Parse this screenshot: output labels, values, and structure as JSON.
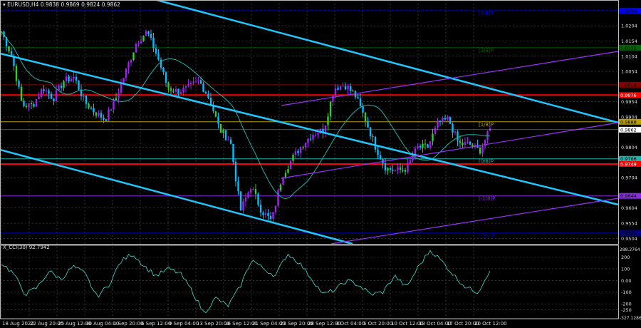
{
  "header": {
    "symbol_label": "EURUSD,H4",
    "ohlc": "0.9838 0.9869 0.9824 0.9862"
  },
  "indicator": {
    "label": "X_CCI(30) 92.7942"
  },
  "colors": {
    "background": "#000000",
    "bull_bar": "#a020f0",
    "bear_bar": "#00bfff",
    "highlight_bar": "#32cd32",
    "trend_channel": "#1ec8ff",
    "regression_channel": "#9b30ff",
    "moving_average": "#20b2aa",
    "support_resistance": "#ff0000",
    "cci_line": "#40e0d0",
    "grid": "#555555"
  },
  "chart_data": {
    "type": "candlestick",
    "price_axis": {
      "range": [
        0.9486,
        1.0289
      ],
      "ticks": [
        "1.0204",
        "1.0154",
        "1.0104",
        "1.0054",
        "0.9954",
        "0.9904",
        "0.9804",
        "0.9704",
        "0.9604",
        "0.9554",
        "0.9504"
      ]
    },
    "time_axis": {
      "ticks": [
        "18 Aug 2022",
        "22 Aug 20:00",
        "25 Aug 12:00",
        "30 Aug 04:00",
        "1 Sep 20:00",
        "6 Sep 12:00",
        "9 Sep 04:00",
        "13 Sep 20:00",
        "16 Sep 12:00",
        "21 Sep 04:00",
        "23 Sep 20:00",
        "28 Sep 12:00",
        "3 Oct 04:00",
        "5 Oct 20:00",
        "10 Oct 12:00",
        "13 Oct 04:00",
        "17 Oct 20:00",
        "20 Oct 12:00"
      ]
    },
    "grid": true,
    "price_path": [
      1.0185,
      1.0104,
      0.9942,
      0.9942,
      1.0,
      0.9965,
      1.0023,
      1.0035,
      0.9954,
      0.9919,
      0.9896,
      0.9965,
      1.0058,
      1.015,
      1.0185,
      1.0104,
      1.0,
      0.9988,
      1.0,
      1.0023,
      0.9965,
      0.9861,
      0.9827,
      0.9596,
      0.9677,
      0.9596,
      0.9561,
      0.9711,
      0.9769,
      0.9815,
      0.985,
      0.9861,
      0.9999,
      1.001,
      0.9977,
      0.9896,
      0.9804,
      0.9734,
      0.9727,
      0.9734,
      0.9804,
      0.9804,
      0.9884,
      0.9896,
      0.9815,
      0.9815,
      0.9792,
      0.9862
    ],
    "murray_levels": [
      {
        "label": "[4/8]P",
        "value": "1.0254",
        "color": "#0000ff"
      },
      {
        "label": "[3/8]P",
        "value": "1.0132",
        "color": "#006400"
      },
      {
        "label": "[2/8]P",
        "value": "1.0010",
        "color": "#8b0000"
      },
      {
        "label": "[1/8]P",
        "value": "0.9888",
        "color": "#b8a000"
      },
      {
        "label": "[0/8]P",
        "value": "0.9766",
        "color": "#20b2aa"
      },
      {
        "label": "[-1/8]P",
        "value": "0.9644",
        "color": "#8a2be2"
      },
      {
        "label": "[-2/8]P",
        "value": "0.9522",
        "color": "#00008b"
      }
    ],
    "horizontal_lines": [
      {
        "value": "0.9976",
        "color": "#ff0000"
      },
      {
        "value": "0.9749",
        "color": "#ff0000"
      }
    ],
    "current_price": "0.9862",
    "cci": {
      "range": [
        -327.1286,
        288.2764
      ],
      "range_labels": [
        "288.2764",
        "-327.1286"
      ],
      "ticks": [
        "200",
        "100",
        "0.00",
        "-100",
        "-200",
        "-250"
      ],
      "path": [
        150,
        60,
        -120,
        -60,
        80,
        10,
        120,
        60,
        -140,
        -40,
        160,
        230,
        120,
        40,
        100,
        60,
        -90,
        -280,
        -150,
        -220,
        -60,
        180,
        100,
        40,
        230,
        150,
        20,
        -120,
        -80,
        0,
        -40,
        -120,
        -100,
        40,
        -60,
        120,
        260,
        160,
        40,
        -60,
        -100,
        92.79
      ]
    }
  }
}
